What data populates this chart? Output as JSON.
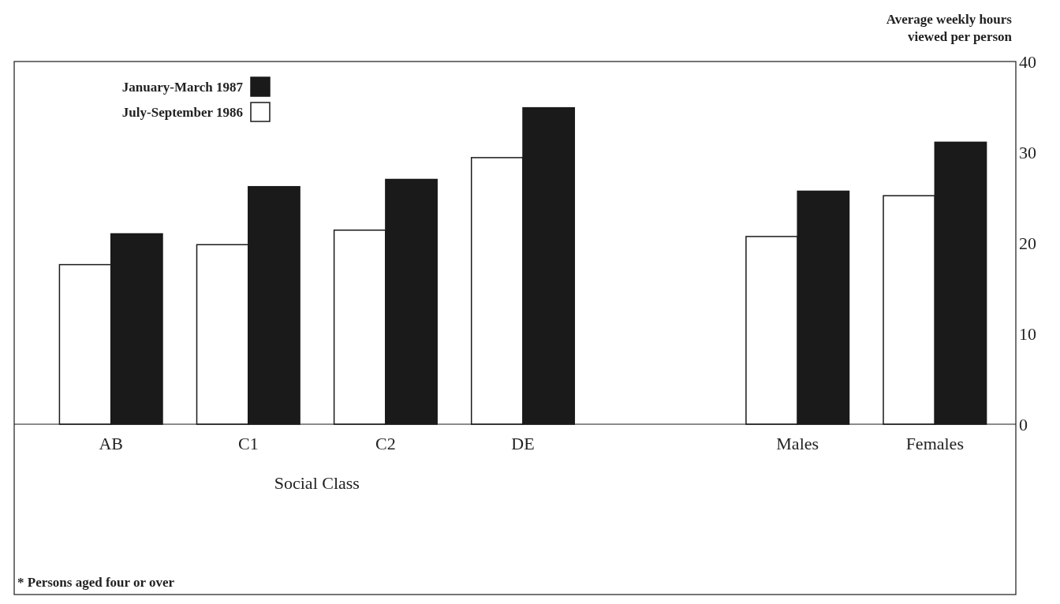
{
  "chart_data": {
    "type": "bar",
    "categories": [
      "AB",
      "C1",
      "C2",
      "DE",
      null,
      "Males",
      "Females"
    ],
    "series": [
      {
        "name": "July-September 1986",
        "color": "#ffffff",
        "values": [
          17.6,
          19.8,
          21.4,
          29.4,
          null,
          20.7,
          25.2
        ]
      },
      {
        "name": "January-March 1987",
        "color": "#1a1a1a",
        "values": [
          21.0,
          26.2,
          27.0,
          34.9,
          null,
          25.7,
          31.1
        ]
      }
    ],
    "xlabel": "Social Class",
    "ylabel": "Average weekly hours viewed per person",
    "ylim": [
      0,
      40
    ],
    "yticks": [
      0,
      10,
      20,
      30,
      40
    ],
    "legend": "top left",
    "grid": false,
    "annotations": [
      "* Persons aged four or over"
    ]
  }
}
